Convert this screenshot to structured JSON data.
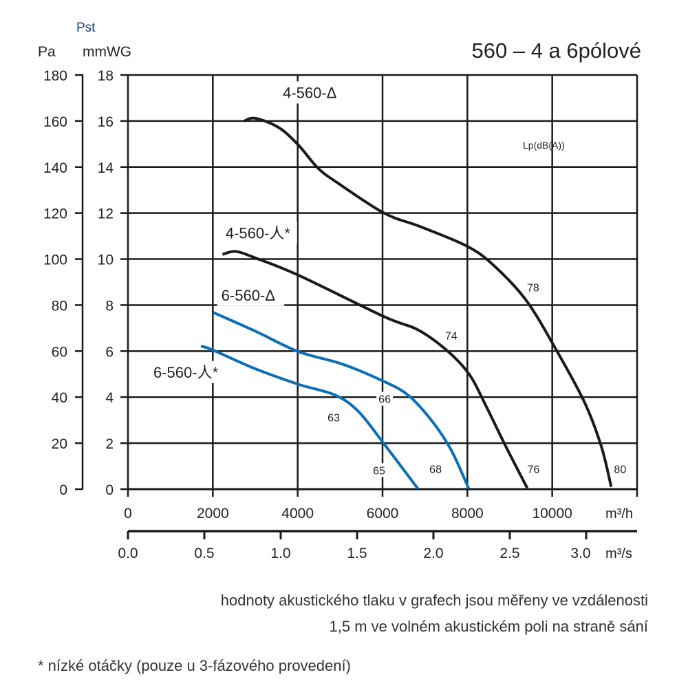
{
  "chart_data": {
    "type": "line",
    "title": "560 – 4 a 6pólové",
    "ylabel_main": "Pst",
    "ylabel_left_unit": "Pa",
    "ylabel_right_unit": "mmWG",
    "annotation_unit": "Lp(dB(A))",
    "xlabel_top_unit": "m³/h",
    "xlabel_bottom_unit": "m³/s",
    "xlim": [
      0,
      12000
    ],
    "ylim": [
      0,
      18
    ],
    "grid": true,
    "x_ticks": [
      "0",
      "2000",
      "4000",
      "6000",
      "8000",
      "10000"
    ],
    "x_tick_values": [
      0,
      2000,
      4000,
      6000,
      8000,
      10000
    ],
    "x2_ticks": [
      "0.0",
      "0.5",
      "1.0",
      "1.5",
      "2.0",
      "2.5",
      "3.0"
    ],
    "x2_tick_values": [
      0,
      0.5,
      1.0,
      1.5,
      2.0,
      2.5,
      3.0
    ],
    "y_ticks_mmwg": [
      "0",
      "2",
      "4",
      "6",
      "8",
      "10",
      "12",
      "14",
      "16",
      "18"
    ],
    "y_ticks_pa": [
      "0",
      "20",
      "40",
      "60",
      "80",
      "100",
      "120",
      "140",
      "160",
      "180"
    ],
    "series": [
      {
        "name": "4-560-Δ",
        "color": "#1a1a1a",
        "x": [
          2740,
          3000,
          3550,
          4015,
          4480,
          4950,
          6035,
          6890,
          7970,
          8600,
          9380,
          10080,
          10770,
          11160,
          11390
        ],
        "y": [
          16.0,
          16.12,
          15.72,
          14.96,
          13.95,
          13.3,
          12.0,
          11.41,
          10.58,
          9.76,
          8.22,
          6.1,
          3.74,
          1.84,
          0.1
        ],
        "label_at": [
          3650,
          17.0
        ]
      },
      {
        "name": "4-560-人*",
        "color": "#1a1a1a",
        "x": [
          2230,
          2540,
          3000,
          4015,
          6035,
          6830,
          7510,
          8040,
          8430,
          8900,
          9410
        ],
        "y": [
          10.2,
          10.33,
          10.05,
          9.3,
          7.5,
          6.93,
          6.04,
          5.0,
          3.65,
          1.88,
          0.05
        ],
        "label_at": [
          2300,
          10.9
        ]
      },
      {
        "name": "6-560-Δ",
        "color": "#0b6fb8",
        "x": [
          2010,
          3010,
          4015,
          5045,
          6035,
          6600,
          7140,
          7610,
          8030
        ],
        "y": [
          7.68,
          6.86,
          5.98,
          5.44,
          4.68,
          4.09,
          3.02,
          1.73,
          0.03
        ],
        "label_at": [
          2200,
          8.2
        ]
      },
      {
        "name": "6-560-人*",
        "color": "#0b6fb8",
        "x": [
          1720,
          2010,
          2950,
          4015,
          4880,
          5430,
          6035,
          6830
        ],
        "y": [
          6.22,
          6.04,
          5.27,
          4.56,
          4.09,
          3.38,
          1.97,
          0.03
        ],
        "label_at": [
          600,
          4.85
        ]
      }
    ],
    "noise_labels": [
      {
        "text": "78",
        "x": 9550,
        "y": 8.6
      },
      {
        "text": "74",
        "x": 7620,
        "y": 6.5
      },
      {
        "text": "76",
        "x": 9560,
        "y": 0.7
      },
      {
        "text": "80",
        "x": 11600,
        "y": 0.7
      },
      {
        "text": "66",
        "x": 6050,
        "y": 3.75
      },
      {
        "text": "63",
        "x": 4850,
        "y": 2.95
      },
      {
        "text": "65",
        "x": 5920,
        "y": 0.65
      },
      {
        "text": "68",
        "x": 7250,
        "y": 0.7
      }
    ]
  },
  "footer": {
    "line1": "hodnoty akustického tlaku v grafech jsou měřeny ve vzdálenosti",
    "line2": "1,5 m ve volném akustickém poli na straně sání",
    "note": "* nízké otáčky (pouze u 3-fázového provedení)"
  }
}
